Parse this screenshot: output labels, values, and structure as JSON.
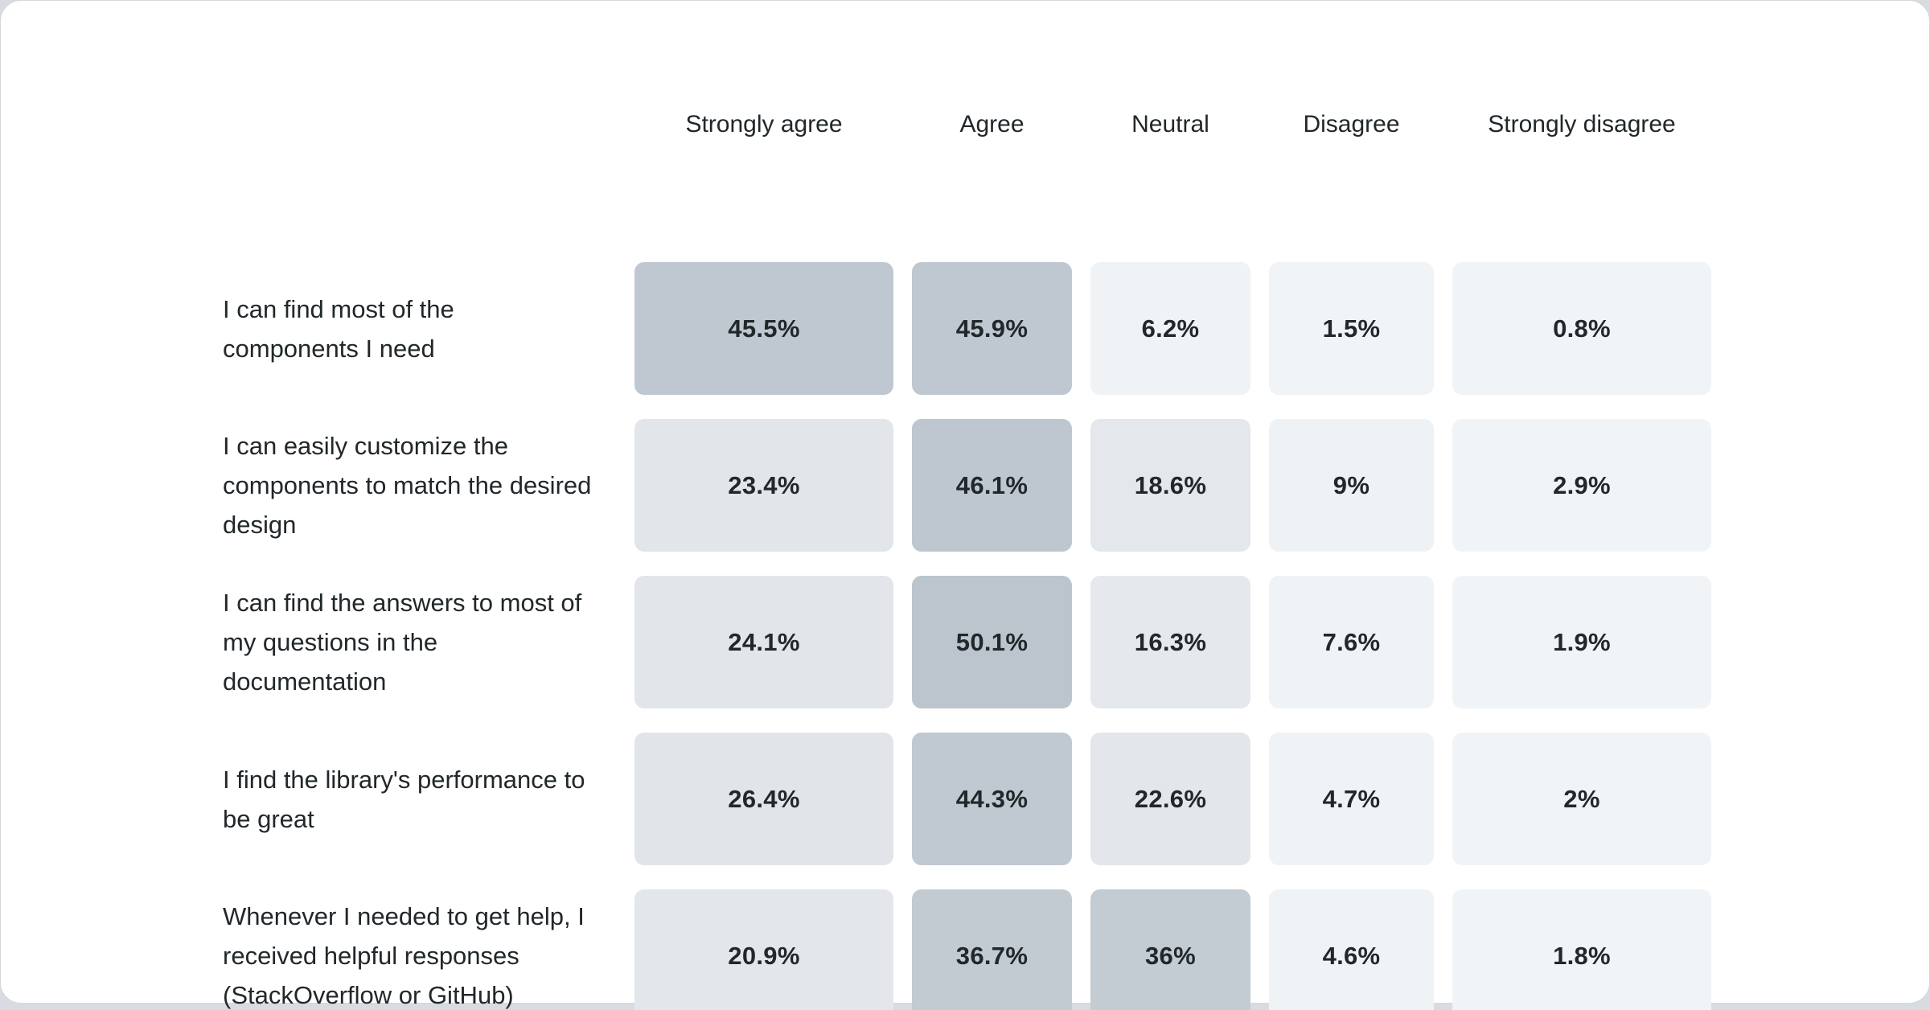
{
  "ui": {
    "page_background": "#d8dbdf",
    "card_background": "#ffffff",
    "card_border": "#d4d8dc",
    "text_color": "#21272a"
  },
  "chart_data": {
    "type": "heatmap",
    "title": "",
    "value_unit": "%",
    "legend_position": "none",
    "grid": false,
    "color_scale": {
      "low": "#f1f4f7",
      "high": "#bcc5ce"
    },
    "columns": [
      "Strongly agree",
      "Agree",
      "Neutral",
      "Disagree",
      "Strongly disagree"
    ],
    "rows": [
      {
        "label": "I can find most of the components I need",
        "values": [
          45.5,
          45.9,
          6.2,
          1.5,
          0.8
        ],
        "display": [
          "45.5%",
          "45.9%",
          "6.2%",
          "1.5%",
          "0.8%"
        ],
        "colors": [
          "#bfc7d0",
          "#bfc8d1",
          "#f0f3f6",
          "#f1f4f7",
          "#f1f4f7"
        ]
      },
      {
        "label": "I can easily customize the components to match the desired design",
        "values": [
          23.4,
          46.1,
          18.6,
          9,
          2.9
        ],
        "display": [
          "23.4%",
          "46.1%",
          "18.6%",
          "9%",
          "2.9%"
        ],
        "colors": [
          "#e2e6ea",
          "#bec7d0",
          "#e4e7eb",
          "#eff2f5",
          "#f1f4f7"
        ]
      },
      {
        "label": "I can find the answers to most of my questions in the documentation",
        "values": [
          24.1,
          50.1,
          16.3,
          7.6,
          1.9
        ],
        "display": [
          "24.1%",
          "50.1%",
          "16.3%",
          "7.6%",
          "1.9%"
        ],
        "colors": [
          "#e2e5e9",
          "#bcc5ce",
          "#e5e8ec",
          "#f0f3f6",
          "#f1f4f7"
        ]
      },
      {
        "label": "I find the library's performance to be great",
        "values": [
          26.4,
          44.3,
          22.6,
          4.7,
          2
        ],
        "display": [
          "26.4%",
          "44.3%",
          "22.6%",
          "4.7%",
          "2%"
        ],
        "colors": [
          "#e1e5e9",
          "#c0c8d1",
          "#e3e6ea",
          "#f0f3f6",
          "#f1f4f7"
        ]
      },
      {
        "label": "Whenever I needed to get help, I received helpful responses (StackOverflow or GitHub)",
        "values": [
          20.9,
          36.7,
          36,
          4.6,
          1.8
        ],
        "display": [
          "20.9%",
          "36.7%",
          "36%",
          "4.6%",
          "1.8%"
        ],
        "colors": [
          "#e3e7eb",
          "#c2cad2",
          "#c3cbd3",
          "#f0f3f6",
          "#f1f4f7"
        ]
      }
    ]
  }
}
